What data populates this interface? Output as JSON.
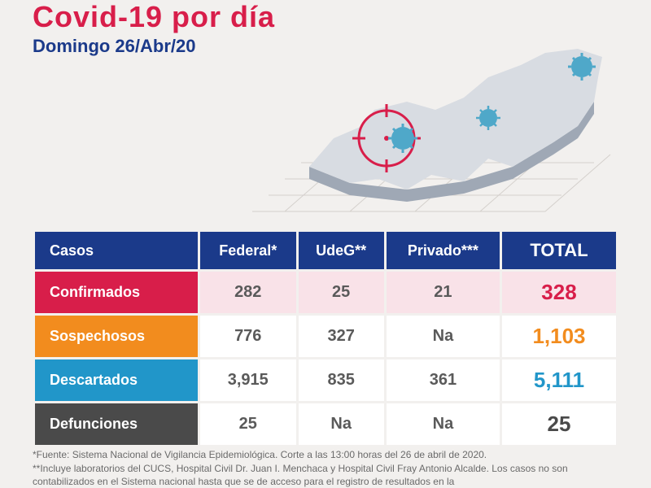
{
  "colors": {
    "title": "#d81e4a",
    "subtitle": "#1b3a8a",
    "header_bg": "#1b3a8a",
    "confirmed_label_bg": "#d81e4a",
    "confirmed_row_bg": "#f9e2e8",
    "confirmed_total": "#d81e4a",
    "suspect_label_bg": "#f28c1e",
    "suspect_row_bg": "#ffffff",
    "suspect_total": "#f28c1e",
    "discarded_label_bg": "#2196c9",
    "discarded_row_bg": "#ffffff",
    "discarded_total": "#2196c9",
    "deaths_label_bg": "#4a4a4a",
    "deaths_row_bg": "#ffffff",
    "deaths_total": "#4a4a4a",
    "data_text": "#5a5a5a",
    "footer_text": "#6a6a6a",
    "map_top": "#d8dce2",
    "map_side": "#9fa8b5",
    "virus": "#4fa8c9",
    "crosshair": "#d81e4a",
    "grid": "#d4d0cc"
  },
  "header": {
    "title": "Covid-19 por día",
    "subtitle": "Domingo 26/Abr/20"
  },
  "table": {
    "columns": [
      "Casos",
      "Federal*",
      "UdeG**",
      "Privado***",
      "TOTAL"
    ],
    "rows": [
      {
        "key": "confirmed",
        "label": "Confirmados",
        "cells": [
          "282",
          "25",
          "21"
        ],
        "total": "328"
      },
      {
        "key": "suspect",
        "label": "Sospechosos",
        "cells": [
          "776",
          "327",
          "Na"
        ],
        "total": "1,103"
      },
      {
        "key": "discarded",
        "label": "Descartados",
        "cells": [
          "3,915",
          "835",
          "361"
        ],
        "total": "5,111"
      },
      {
        "key": "deaths",
        "label": "Defunciones",
        "cells": [
          "25",
          "Na",
          "Na"
        ],
        "total": "25"
      }
    ]
  },
  "footer": {
    "line1": "*Fuente: Sistema Nacional de Vigilancia Epidemiológica. Corte a las 13:00 horas del 26 de abril de 2020.",
    "line2": "**Incluye laboratorios del CUCS, Hospital Civil Dr. Juan I. Menchaca y Hospital Civil Fray Antonio Alcalde. Los casos no son contabilizados en el Sistema nacional hasta que se de acceso para el registro de resultados en la"
  }
}
